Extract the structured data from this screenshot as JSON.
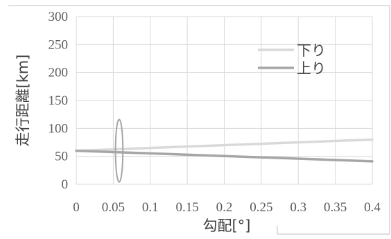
{
  "chart_data": {
    "type": "line",
    "xlabel": "勾配[°]",
    "ylabel": "走行距離[km]",
    "xlim": [
      0,
      0.4
    ],
    "ylim": [
      0,
      300
    ],
    "x_ticks": [
      "0",
      "0.05",
      "0.1",
      "0.15",
      "0.2",
      "0.25",
      "0.3",
      "0.35",
      "0.4"
    ],
    "y_ticks": [
      "0",
      "50",
      "100",
      "150",
      "200",
      "250",
      "300"
    ],
    "grid": true,
    "legend_position": "top-right",
    "series": [
      {
        "name": "下り",
        "color": "#d9d9d9",
        "x": [
          0,
          0.4
        ],
        "y": [
          60,
          80
        ]
      },
      {
        "name": "上り",
        "color": "#a6a6a6",
        "x": [
          0,
          0.4
        ],
        "y": [
          60,
          41
        ]
      }
    ],
    "annotation": {
      "type": "ellipse",
      "cx": 0.058,
      "cy": 60,
      "rx": 0.005,
      "ry": 56,
      "color": "#a6a6a6"
    }
  },
  "colors": {
    "grid": "#d9d9d9",
    "axis": "#d9d9d9",
    "border": "#bfbfbf"
  }
}
